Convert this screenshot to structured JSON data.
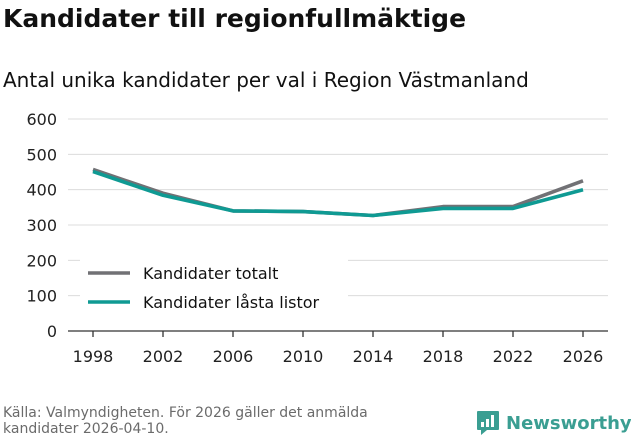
{
  "chart_data": {
    "type": "line",
    "title": "Kandidater till regionfullmäktige",
    "subtitle": "Antal unika kandidater per val i Region Västmanland",
    "categories": [
      "1998",
      "2002",
      "2006",
      "2010",
      "2014",
      "2018",
      "2022",
      "2026"
    ],
    "yticks": [
      0,
      100,
      200,
      300,
      400,
      500,
      600
    ],
    "ylim": [
      0,
      600
    ],
    "grid": true,
    "legend_position": "bottom-left",
    "series": [
      {
        "name": "Kandidater totalt",
        "color": "#717175",
        "values": [
          457,
          390,
          340,
          338,
          327,
          352,
          352,
          425
        ]
      },
      {
        "name": "Kandidater låsta listor",
        "color": "#0f9a93",
        "values": [
          451,
          384,
          340,
          338,
          327,
          347,
          347,
          400
        ]
      }
    ]
  },
  "footer": {
    "source": "Källa: Valmyndigheten. För 2026 gäller det anmälda kandidater 2026-04-10.",
    "brand": "Newsworthy",
    "brand_icon": "newsworthy-logo-icon",
    "brand_color": "#3a9e92"
  }
}
